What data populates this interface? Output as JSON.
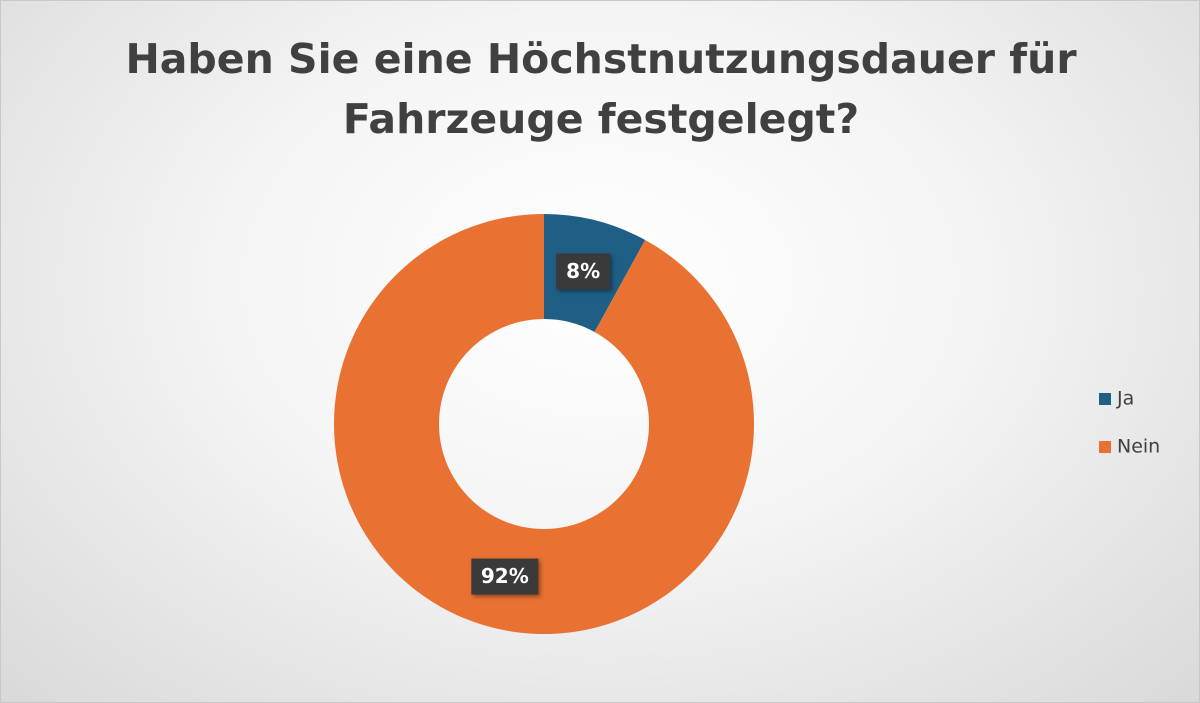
{
  "chart_data": {
    "type": "donut",
    "title": "Haben Sie eine Höchstnutzungsdauer für Fahrzeuge festgelegt?",
    "categories": [
      "Ja",
      "Nein"
    ],
    "values": [
      8,
      92
    ],
    "value_labels": [
      "8%",
      "92%"
    ],
    "colors": [
      "#1f5f86",
      "#e97132"
    ],
    "legend": "right"
  }
}
